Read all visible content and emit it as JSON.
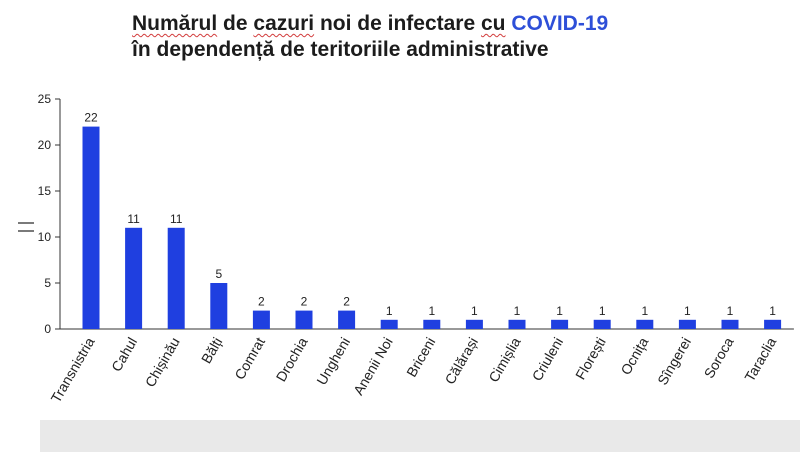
{
  "title": {
    "w1": "Numărul",
    "w2": "de",
    "w3": "cazuri",
    "w4": "noi de infectare",
    "w5": "cu",
    "accent": "COVID-19",
    "line2": "în dependență de teritoriile administrative"
  },
  "colors": {
    "bar": "#1f3fe0",
    "title_accent": "#2e4fd8",
    "spellcheck_underline": "#d23c3c"
  },
  "chart_data": {
    "type": "bar",
    "categories": [
      "Transnistria",
      "Cahul",
      "Chișinău",
      "Bălți",
      "Comrat",
      "Drochia",
      "Ungheni",
      "Anenii Noi",
      "Briceni",
      "Călărași",
      "Cimișlia",
      "Criuleni",
      "Florești",
      "Ocnița",
      "Sîngerei",
      "Soroca",
      "Taraclia"
    ],
    "values": [
      22,
      11,
      11,
      5,
      2,
      2,
      2,
      1,
      1,
      1,
      1,
      1,
      1,
      1,
      1,
      1,
      1
    ],
    "data_labels": [
      "22",
      "11",
      "11",
      "5",
      "2",
      "2",
      "2",
      "1",
      "1",
      "1",
      "1",
      "1",
      "1",
      "1",
      "1",
      "1",
      "1"
    ],
    "yticks": [
      0,
      5,
      10,
      15,
      20,
      25
    ],
    "ylim": [
      0,
      25
    ],
    "xlabel": "",
    "ylabel": "",
    "grid": false,
    "legend": "none"
  }
}
